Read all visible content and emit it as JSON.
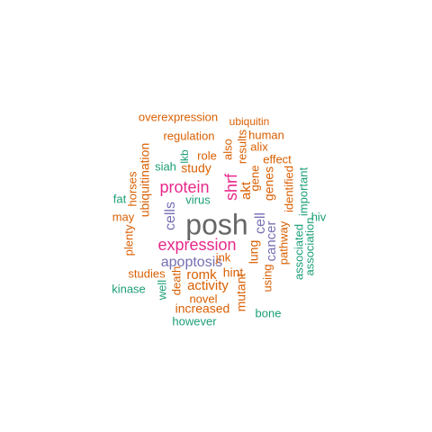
{
  "colors": {
    "orange": "#d95f02",
    "teal": "#1b9e77",
    "purple": "#7570b3",
    "magenta": "#e7298a",
    "gray": "#666666",
    "background": "#ffffff"
  },
  "words": [
    {
      "text": "posh",
      "color": "gray"
    },
    {
      "text": "expression",
      "color": "magenta"
    },
    {
      "text": "protein",
      "color": "magenta"
    },
    {
      "text": "shrf",
      "color": "magenta"
    },
    {
      "text": "apoptosis",
      "color": "purple"
    },
    {
      "text": "cells",
      "color": "purple"
    },
    {
      "text": "cell",
      "color": "purple"
    },
    {
      "text": "cancer",
      "color": "purple"
    },
    {
      "text": "overexpression",
      "color": "orange"
    },
    {
      "text": "ubiquitin",
      "color": "orange"
    },
    {
      "text": "regulation",
      "color": "orange"
    },
    {
      "text": "human",
      "color": "orange"
    },
    {
      "text": "alix",
      "color": "orange"
    },
    {
      "text": "role",
      "color": "orange"
    },
    {
      "text": "also",
      "color": "orange"
    },
    {
      "text": "results",
      "color": "orange"
    },
    {
      "text": "effect",
      "color": "orange"
    },
    {
      "text": "study",
      "color": "orange"
    },
    {
      "text": "ubiquitination",
      "color": "orange"
    },
    {
      "text": "horses",
      "color": "orange"
    },
    {
      "text": "akt",
      "color": "orange"
    },
    {
      "text": "gene",
      "color": "orange"
    },
    {
      "text": "genes",
      "color": "orange"
    },
    {
      "text": "identified",
      "color": "orange"
    },
    {
      "text": "may",
      "color": "orange"
    },
    {
      "text": "lung",
      "color": "orange"
    },
    {
      "text": "pathway",
      "color": "orange"
    },
    {
      "text": "plenty",
      "color": "orange"
    },
    {
      "text": "jnk",
      "color": "orange"
    },
    {
      "text": "romk",
      "color": "orange"
    },
    {
      "text": "hint",
      "color": "orange"
    },
    {
      "text": "studies",
      "color": "orange"
    },
    {
      "text": "death",
      "color": "orange"
    },
    {
      "text": "activity",
      "color": "orange"
    },
    {
      "text": "using",
      "color": "orange"
    },
    {
      "text": "novel",
      "color": "orange"
    },
    {
      "text": "mutant",
      "color": "orange"
    },
    {
      "text": "increased",
      "color": "orange"
    },
    {
      "text": "lkb",
      "color": "teal"
    },
    {
      "text": "siah",
      "color": "teal"
    },
    {
      "text": "fat",
      "color": "teal"
    },
    {
      "text": "virus",
      "color": "teal"
    },
    {
      "text": "important",
      "color": "teal"
    },
    {
      "text": "hiv",
      "color": "teal"
    },
    {
      "text": "associated",
      "color": "teal"
    },
    {
      "text": "association",
      "color": "teal"
    },
    {
      "text": "kinase",
      "color": "teal"
    },
    {
      "text": "well",
      "color": "teal"
    },
    {
      "text": "bone",
      "color": "teal"
    },
    {
      "text": "however",
      "color": "teal"
    }
  ]
}
